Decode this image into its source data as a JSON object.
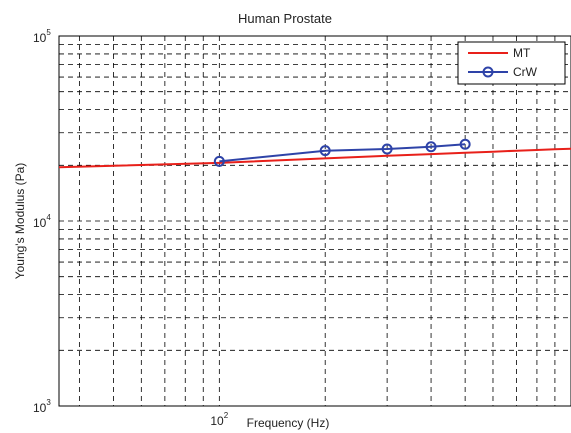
{
  "chart_data": {
    "type": "line",
    "title": "Human Prostate",
    "xlabel": "Frequency (Hz)",
    "ylabel": "Young's Modulus (Pa)",
    "x_scale": "log",
    "y_scale": "log",
    "xlim": [
      35,
      1000
    ],
    "ylim": [
      1000,
      100000
    ],
    "grid": true,
    "x_ticks": [
      {
        "value": 100,
        "base": "10",
        "exp": "2"
      }
    ],
    "y_ticks": [
      {
        "value": 1000,
        "base": "10",
        "exp": "3"
      },
      {
        "value": 10000,
        "base": "10",
        "exp": "4"
      },
      {
        "value": 100000,
        "base": "10",
        "exp": "5"
      }
    ],
    "legend_position": "top-right",
    "series": [
      {
        "name": "MT",
        "color": "#e8201a",
        "marker": "none",
        "x": [
          35,
          100,
          200,
          300,
          400,
          500,
          600,
          700,
          800,
          900,
          1000
        ],
        "y": [
          19500,
          20600,
          21800,
          22500,
          23000,
          23400,
          23700,
          24000,
          24200,
          24400,
          24600
        ]
      },
      {
        "name": "CrW",
        "color": "#2e43a8",
        "marker": "circle",
        "x": [
          100,
          200,
          300,
          400,
          500
        ],
        "y": [
          21000,
          24000,
          24500,
          25200,
          26000
        ]
      }
    ]
  }
}
